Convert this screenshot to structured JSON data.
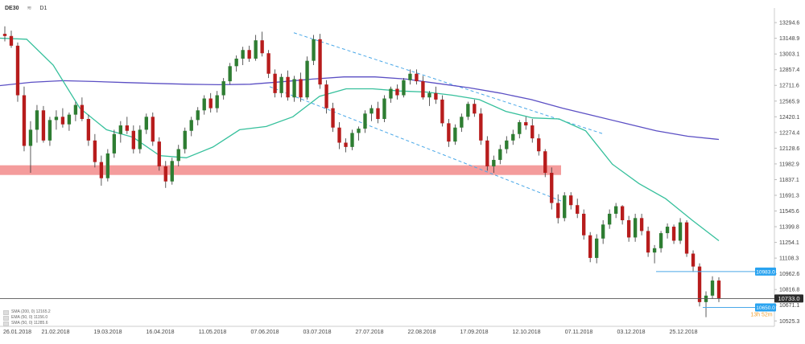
{
  "header": {
    "symbol": "DE30",
    "mode_icon": "candles-icon",
    "timeframe": "D1"
  },
  "legend": [
    {
      "label": "SMA (200, 0) 12165.2"
    },
    {
      "label": "EMA (50, 0) 11156.0"
    },
    {
      "label": "SMA (50, 0) 11285.6"
    }
  ],
  "chart_data": {
    "type": "candlestick",
    "title": "",
    "xlabel": "",
    "ylabel": "",
    "ylim": [
      10490,
      13370
    ],
    "x_ticks": [
      "26.01.2018",
      "21.02.2018",
      "19.03.2018",
      "16.04.2018",
      "11.05.2018",
      "07.06.2018",
      "03.07.2018",
      "27.07.2018",
      "22.08.2018",
      "17.09.2018",
      "12.10.2018",
      "07.11.2018",
      "03.12.2018",
      "25.12.2018"
    ],
    "y_ticks": [
      "13294.6",
      "13148.9",
      "13003.1",
      "12857.4",
      "12711.6",
      "12565.9",
      "12420.1",
      "12274.4",
      "12128.6",
      "11982.9",
      "11837.1",
      "11691.3",
      "11545.6",
      "11399.8",
      "11254.1",
      "11108.3",
      "10962.6",
      "10816.8",
      "10671.1",
      "10525.3"
    ],
    "price_labels": [
      {
        "value": 10733.0,
        "text": "10733.0",
        "color": "#2b2b2b"
      },
      {
        "value": 10983.0,
        "text": "10983.0",
        "color": "#29a3f0"
      },
      {
        "value": 10650.0,
        "text": "10650.0",
        "color": "#29a3f0"
      }
    ],
    "countdown": "13h 52m",
    "support_zone": {
      "low": 11880,
      "high": 11970,
      "color": "#f28b8b"
    },
    "colors": {
      "up": "#2e7d32",
      "down": "#b71c1c",
      "sma200": "#5b4fc4",
      "sma50": "#36c09c",
      "trend": "#4aa8e8"
    },
    "candles": [
      [
        13190,
        13260,
        13120,
        13170
      ],
      [
        13170,
        13220,
        13060,
        13080
      ],
      [
        13080,
        13110,
        12560,
        12620
      ],
      [
        12620,
        12700,
        12100,
        12150
      ],
      [
        12150,
        12380,
        11900,
        12300
      ],
      [
        12300,
        12530,
        12180,
        12480
      ],
      [
        12480,
        12520,
        12180,
        12200
      ],
      [
        12200,
        12420,
        12150,
        12390
      ],
      [
        12390,
        12480,
        12300,
        12420
      ],
      [
        12420,
        12500,
        12320,
        12350
      ],
      [
        12350,
        12460,
        12290,
        12440
      ],
      [
        12440,
        12560,
        12380,
        12530
      ],
      [
        12530,
        12600,
        12380,
        12400
      ],
      [
        12400,
        12440,
        12150,
        12200
      ],
      [
        12200,
        12260,
        11950,
        12000
      ],
      [
        12000,
        12060,
        11780,
        11850
      ],
      [
        11850,
        12120,
        11820,
        12080
      ],
      [
        12080,
        12300,
        12040,
        12260
      ],
      [
        12260,
        12380,
        12180,
        12340
      ],
      [
        12340,
        12420,
        12260,
        12290
      ],
      [
        12290,
        12340,
        12080,
        12120
      ],
      [
        12120,
        12340,
        12080,
        12300
      ],
      [
        12300,
        12450,
        12260,
        12420
      ],
      [
        12420,
        12460,
        12150,
        12190
      ],
      [
        12190,
        12230,
        11920,
        11960
      ],
      [
        11960,
        12010,
        11760,
        11820
      ],
      [
        11820,
        12040,
        11790,
        12010
      ],
      [
        12010,
        12160,
        11960,
        12120
      ],
      [
        12120,
        12320,
        12080,
        12290
      ],
      [
        12290,
        12420,
        12240,
        12390
      ],
      [
        12390,
        12510,
        12340,
        12480
      ],
      [
        12480,
        12620,
        12440,
        12590
      ],
      [
        12590,
        12640,
        12460,
        12500
      ],
      [
        12500,
        12660,
        12460,
        12620
      ],
      [
        12620,
        12780,
        12580,
        12750
      ],
      [
        12750,
        12920,
        12720,
        12890
      ],
      [
        12890,
        12990,
        12840,
        12960
      ],
      [
        12960,
        13070,
        12900,
        13040
      ],
      [
        13040,
        13080,
        12930,
        12960
      ],
      [
        12960,
        13180,
        12940,
        13130
      ],
      [
        13130,
        13210,
        12980,
        13010
      ],
      [
        13010,
        13040,
        12780,
        12820
      ],
      [
        12820,
        12860,
        12600,
        12640
      ],
      [
        12640,
        12820,
        12600,
        12790
      ],
      [
        12790,
        12850,
        12570,
        12600
      ],
      [
        12600,
        12800,
        12560,
        12770
      ],
      [
        12770,
        12830,
        12560,
        12600
      ],
      [
        12600,
        12980,
        12580,
        12940
      ],
      [
        12940,
        13180,
        12900,
        13140
      ],
      [
        13140,
        13190,
        12680,
        12720
      ],
      [
        12720,
        12760,
        12450,
        12500
      ],
      [
        12500,
        12550,
        12280,
        12320
      ],
      [
        12320,
        12370,
        12120,
        12180
      ],
      [
        12180,
        12220,
        12090,
        12140
      ],
      [
        12140,
        12300,
        12110,
        12270
      ],
      [
        12270,
        12330,
        12200,
        12310
      ],
      [
        12310,
        12480,
        12270,
        12450
      ],
      [
        12450,
        12530,
        12380,
        12500
      ],
      [
        12500,
        12560,
        12360,
        12400
      ],
      [
        12400,
        12620,
        12370,
        12590
      ],
      [
        12590,
        12700,
        12550,
        12680
      ],
      [
        12680,
        12720,
        12580,
        12620
      ],
      [
        12620,
        12780,
        12600,
        12760
      ],
      [
        12760,
        12860,
        12720,
        12820
      ],
      [
        12820,
        12860,
        12720,
        12750
      ],
      [
        12750,
        12800,
        12580,
        12600
      ],
      [
        12600,
        12660,
        12520,
        12640
      ],
      [
        12640,
        12700,
        12540,
        12580
      ],
      [
        12580,
        12620,
        12330,
        12360
      ],
      [
        12360,
        12400,
        12140,
        12190
      ],
      [
        12190,
        12350,
        12160,
        12320
      ],
      [
        12320,
        12450,
        12280,
        12420
      ],
      [
        12420,
        12560,
        12390,
        12540
      ],
      [
        12540,
        12580,
        12420,
        12450
      ],
      [
        12450,
        12500,
        12160,
        12200
      ],
      [
        12200,
        12240,
        11920,
        11960
      ],
      [
        11960,
        12060,
        11900,
        12020
      ],
      [
        12020,
        12160,
        11980,
        12120
      ],
      [
        12120,
        12240,
        12080,
        12200
      ],
      [
        12200,
        12300,
        12160,
        12260
      ],
      [
        12260,
        12390,
        12220,
        12370
      ],
      [
        12370,
        12420,
        12300,
        12340
      ],
      [
        12340,
        12400,
        12180,
        12220
      ],
      [
        12220,
        12260,
        12060,
        12100
      ],
      [
        12100,
        12120,
        11860,
        11900
      ],
      [
        11900,
        11950,
        11560,
        11620
      ],
      [
        11620,
        11700,
        11430,
        11480
      ],
      [
        11480,
        11720,
        11450,
        11690
      ],
      [
        11690,
        11720,
        11560,
        11600
      ],
      [
        11600,
        11660,
        11480,
        11520
      ],
      [
        11520,
        11560,
        11280,
        11320
      ],
      [
        11320,
        11350,
        11070,
        11110
      ],
      [
        11110,
        11330,
        11060,
        11290
      ],
      [
        11290,
        11460,
        11240,
        11420
      ],
      [
        11420,
        11560,
        11380,
        11520
      ],
      [
        11520,
        11620,
        11480,
        11590
      ],
      [
        11590,
        11600,
        11420,
        11460
      ],
      [
        11460,
        11500,
        11260,
        11300
      ],
      [
        11300,
        11520,
        11260,
        11480
      ],
      [
        11480,
        11520,
        11320,
        11360
      ],
      [
        11360,
        11400,
        11120,
        11160
      ],
      [
        11160,
        11230,
        11060,
        11200
      ],
      [
        11200,
        11360,
        11160,
        11340
      ],
      [
        11340,
        11430,
        11290,
        11400
      ],
      [
        11400,
        11420,
        11240,
        11270
      ],
      [
        11270,
        11480,
        11240,
        11440
      ],
      [
        11440,
        11460,
        11120,
        11150
      ],
      [
        11150,
        11180,
        10980,
        11030
      ],
      [
        11030,
        11060,
        10660,
        10700
      ],
      [
        10700,
        10800,
        10560,
        10760
      ],
      [
        10760,
        10940,
        10730,
        10900
      ],
      [
        10900,
        10930,
        10700,
        10733
      ]
    ],
    "sma200": [
      12710,
      12740,
      12755,
      12748,
      12738,
      12730,
      12722,
      12718,
      12722,
      12745,
      12770,
      12790,
      12790,
      12770,
      12730,
      12690,
      12640,
      12580,
      12500,
      12430,
      12360,
      12290,
      12240,
      12210
    ],
    "sma50": [
      13150,
      13140,
      12900,
      12500,
      12300,
      12230,
      12060,
      12040,
      12140,
      12300,
      12330,
      12420,
      12610,
      12680,
      12680,
      12660,
      12650,
      12620,
      12580,
      12470,
      12410,
      12400,
      12290,
      11980,
      11800,
      11660,
      11460,
      11270
    ],
    "channel": {
      "upper": [
        [
          13200,
          12260
        ]
      ],
      "lower": [
        [
          12700,
          11630
        ]
      ]
    },
    "bands": [
      10983.0,
      10650.0
    ]
  }
}
